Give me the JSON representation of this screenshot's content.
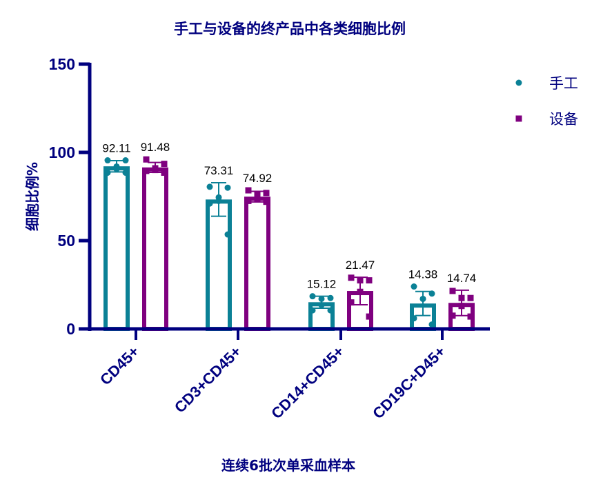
{
  "chart_data": {
    "type": "bar",
    "title": "手工与设备的终产品中各类细胞比例",
    "xlabel": "连续6批次单采血样本",
    "ylabel": "细胞比例%",
    "ylim": [
      0,
      150
    ],
    "yticks": [
      0,
      50,
      100,
      150
    ],
    "grid": false,
    "legend_position": "right",
    "categories": [
      "CD45+",
      "CD3+CD45+",
      "CD14+CD45+",
      "CD19C+D45+"
    ],
    "series": [
      {
        "name": "手工",
        "color": "#0b8196",
        "marker": "circle",
        "values": [
          92.11,
          73.31,
          15.12,
          14.38
        ],
        "labels": [
          "92.11",
          "73.31",
          "15.12",
          "14.38"
        ],
        "error": [
          3.2,
          9.5,
          3.4,
          6.8
        ],
        "points": [
          [
            95.5,
            95.5,
            92.0,
            90.5,
            88.5,
            88.5
          ],
          [
            80.5,
            80.0,
            74.5,
            72.5,
            71.0,
            53.5
          ],
          [
            18.5,
            17.5,
            17.0,
            13.5,
            10.5,
            10.5
          ],
          [
            24.0,
            20.0,
            17.0,
            17.0,
            6.0,
            2.5
          ]
        ]
      },
      {
        "name": "设备",
        "color": "#7f007f",
        "marker": "square",
        "values": [
          91.48,
          74.92,
          21.47,
          14.74
        ],
        "labels": [
          "91.48",
          "74.92",
          "21.47",
          "14.74"
        ],
        "error": [
          2.8,
          3.0,
          7.8,
          7.2
        ],
        "points": [
          [
            96.0,
            93.5,
            91.0,
            90.0,
            89.5,
            88.5
          ],
          [
            78.5,
            77.0,
            76.0,
            73.5,
            72.5,
            72.0
          ],
          [
            29.0,
            27.5,
            27.5,
            21.0,
            15.0,
            7.0
          ],
          [
            21.5,
            17.5,
            17.5,
            13.0,
            7.5,
            7.0
          ]
        ]
      }
    ]
  },
  "layout": {
    "axis_color": "#00007f"
  }
}
